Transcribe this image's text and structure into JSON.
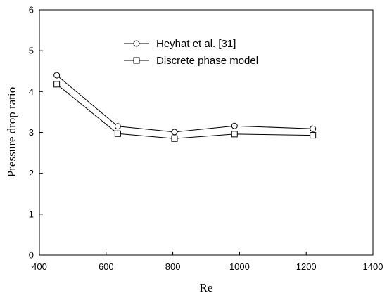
{
  "chart_data": {
    "type": "line",
    "title": "",
    "xlabel": "Re",
    "ylabel": "Pressure drop ratio",
    "xlim": [
      400,
      1400
    ],
    "ylim": [
      0,
      6
    ],
    "xticks": [
      "400",
      "600",
      "800",
      "1000",
      "1200",
      "1400"
    ],
    "yticks": [
      "0",
      "1",
      "2",
      "3",
      "4",
      "5",
      "6"
    ],
    "grid": false,
    "legend_position": "top-center",
    "series": [
      {
        "name": "Heyhat et al. [31]",
        "marker": "circle",
        "x": [
          452,
          635,
          805,
          985,
          1220
        ],
        "y": [
          4.4,
          3.15,
          3.01,
          3.16,
          3.09
        ]
      },
      {
        "name": "Discrete phase model",
        "marker": "square",
        "x": [
          452,
          635,
          805,
          985,
          1220
        ],
        "y": [
          4.18,
          2.97,
          2.85,
          2.96,
          2.93
        ]
      }
    ]
  }
}
